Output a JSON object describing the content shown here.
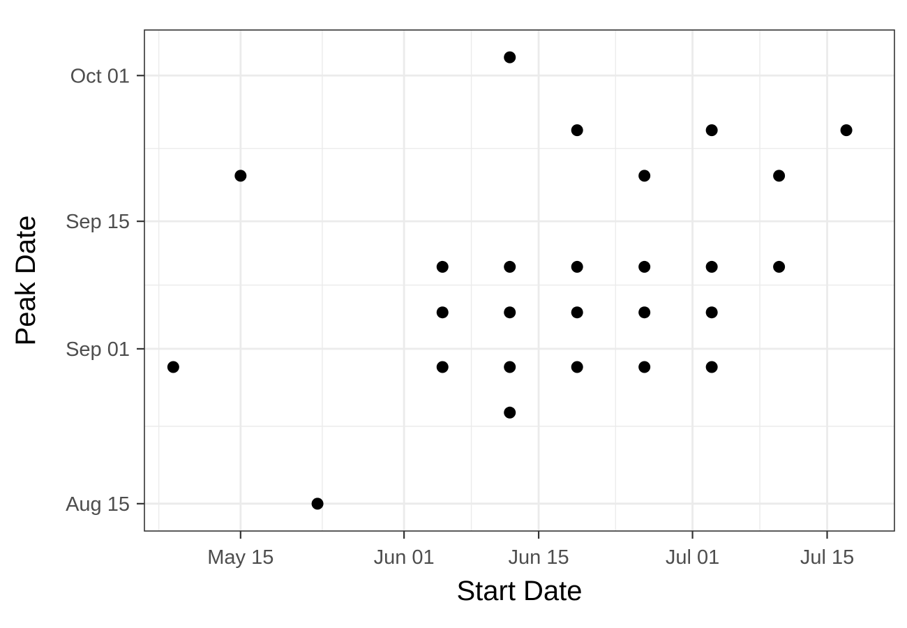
{
  "chart_data": {
    "type": "scatter",
    "title": "",
    "xlabel": "Start Date",
    "ylabel": "Peak Date",
    "x_axis": {
      "scale": "date",
      "range": [
        "2023-05-05",
        "2023-07-22"
      ],
      "ticks": [
        "2023-05-15",
        "2023-06-01",
        "2023-06-15",
        "2023-07-01",
        "2023-07-15"
      ],
      "tick_labels": [
        "May 15",
        "Jun 01",
        "Jun 15",
        "Jul 01",
        "Jul 15"
      ]
    },
    "y_axis": {
      "scale": "date",
      "range": [
        "2023-08-12",
        "2023-10-06"
      ],
      "ticks": [
        "2023-08-15",
        "2023-09-01",
        "2023-09-15",
        "2023-10-01"
      ],
      "tick_labels": [
        "Aug 15",
        "Sep 01",
        "Sep 15",
        "Oct 01"
      ]
    },
    "grid": true,
    "legend": "none",
    "point_color": "#000000",
    "points": [
      {
        "x": "2023-05-08",
        "y": "2023-08-30"
      },
      {
        "x": "2023-05-15",
        "y": "2023-09-20"
      },
      {
        "x": "2023-05-23",
        "y": "2023-08-15"
      },
      {
        "x": "2023-06-05",
        "y": "2023-08-30"
      },
      {
        "x": "2023-06-05",
        "y": "2023-09-05"
      },
      {
        "x": "2023-06-05",
        "y": "2023-09-10"
      },
      {
        "x": "2023-06-12",
        "y": "2023-08-25"
      },
      {
        "x": "2023-06-12",
        "y": "2023-08-30"
      },
      {
        "x": "2023-06-12",
        "y": "2023-09-05"
      },
      {
        "x": "2023-06-12",
        "y": "2023-09-10"
      },
      {
        "x": "2023-06-12",
        "y": "2023-10-03"
      },
      {
        "x": "2023-06-19",
        "y": "2023-08-30"
      },
      {
        "x": "2023-06-19",
        "y": "2023-09-05"
      },
      {
        "x": "2023-06-19",
        "y": "2023-09-10"
      },
      {
        "x": "2023-06-19",
        "y": "2023-09-25"
      },
      {
        "x": "2023-06-26",
        "y": "2023-08-30"
      },
      {
        "x": "2023-06-26",
        "y": "2023-09-05"
      },
      {
        "x": "2023-06-26",
        "y": "2023-09-10"
      },
      {
        "x": "2023-06-26",
        "y": "2023-09-20"
      },
      {
        "x": "2023-07-03",
        "y": "2023-08-30"
      },
      {
        "x": "2023-07-03",
        "y": "2023-09-05"
      },
      {
        "x": "2023-07-03",
        "y": "2023-09-10"
      },
      {
        "x": "2023-07-03",
        "y": "2023-09-25"
      },
      {
        "x": "2023-07-10",
        "y": "2023-09-10"
      },
      {
        "x": "2023-07-10",
        "y": "2023-09-20"
      },
      {
        "x": "2023-07-17",
        "y": "2023-09-25"
      }
    ]
  }
}
